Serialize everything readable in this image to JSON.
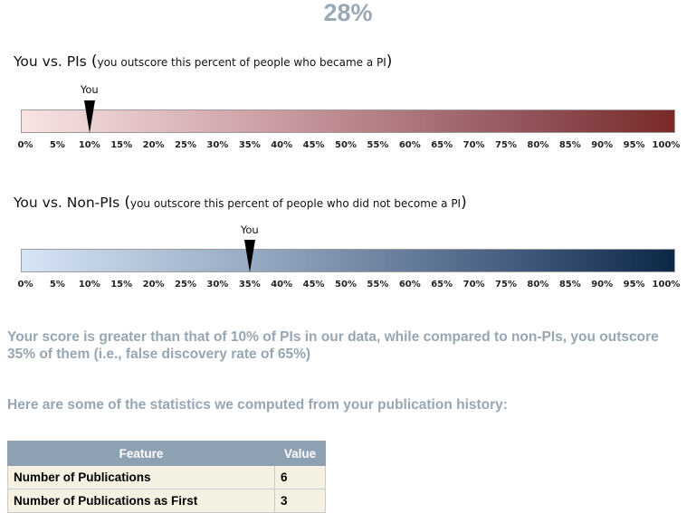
{
  "score": "28%",
  "pis_section": {
    "title": "You vs. PIs",
    "subtitle": "you outscore this percent of people who became a PI",
    "you_label": "You",
    "you_percent": 10,
    "colors": {
      "start": "#f8e4e4",
      "end": "#7a2a28"
    }
  },
  "nonpis_section": {
    "title": "You vs. Non-PIs",
    "subtitle": "you outscore this percent of people who did not become a PI",
    "you_label": "You",
    "you_percent": 35,
    "colors": {
      "start": "#d6e5f6",
      "end": "#0d2747"
    }
  },
  "tick_labels": [
    "0%",
    "5%",
    "10%",
    "15%",
    "20%",
    "25%",
    "30%",
    "35%",
    "40%",
    "45%",
    "50%",
    "55%",
    "60%",
    "65%",
    "70%",
    "75%",
    "80%",
    "85%",
    "90%",
    "95%",
    "100%"
  ],
  "summary": "Your score is greater than that of 10% of PIs in our data, while compared to non-PIs, you outscore 35% of them (i.e., false discovery rate of 65%)",
  "stats_intro": "Here are some of the statistics we computed from your publication history:",
  "table": {
    "headers": {
      "feature": "Feature",
      "value": "Value"
    },
    "rows": [
      {
        "feature": "Number of Publications",
        "value": "6"
      },
      {
        "feature": "Number of Publications as First",
        "value": "3"
      }
    ]
  }
}
